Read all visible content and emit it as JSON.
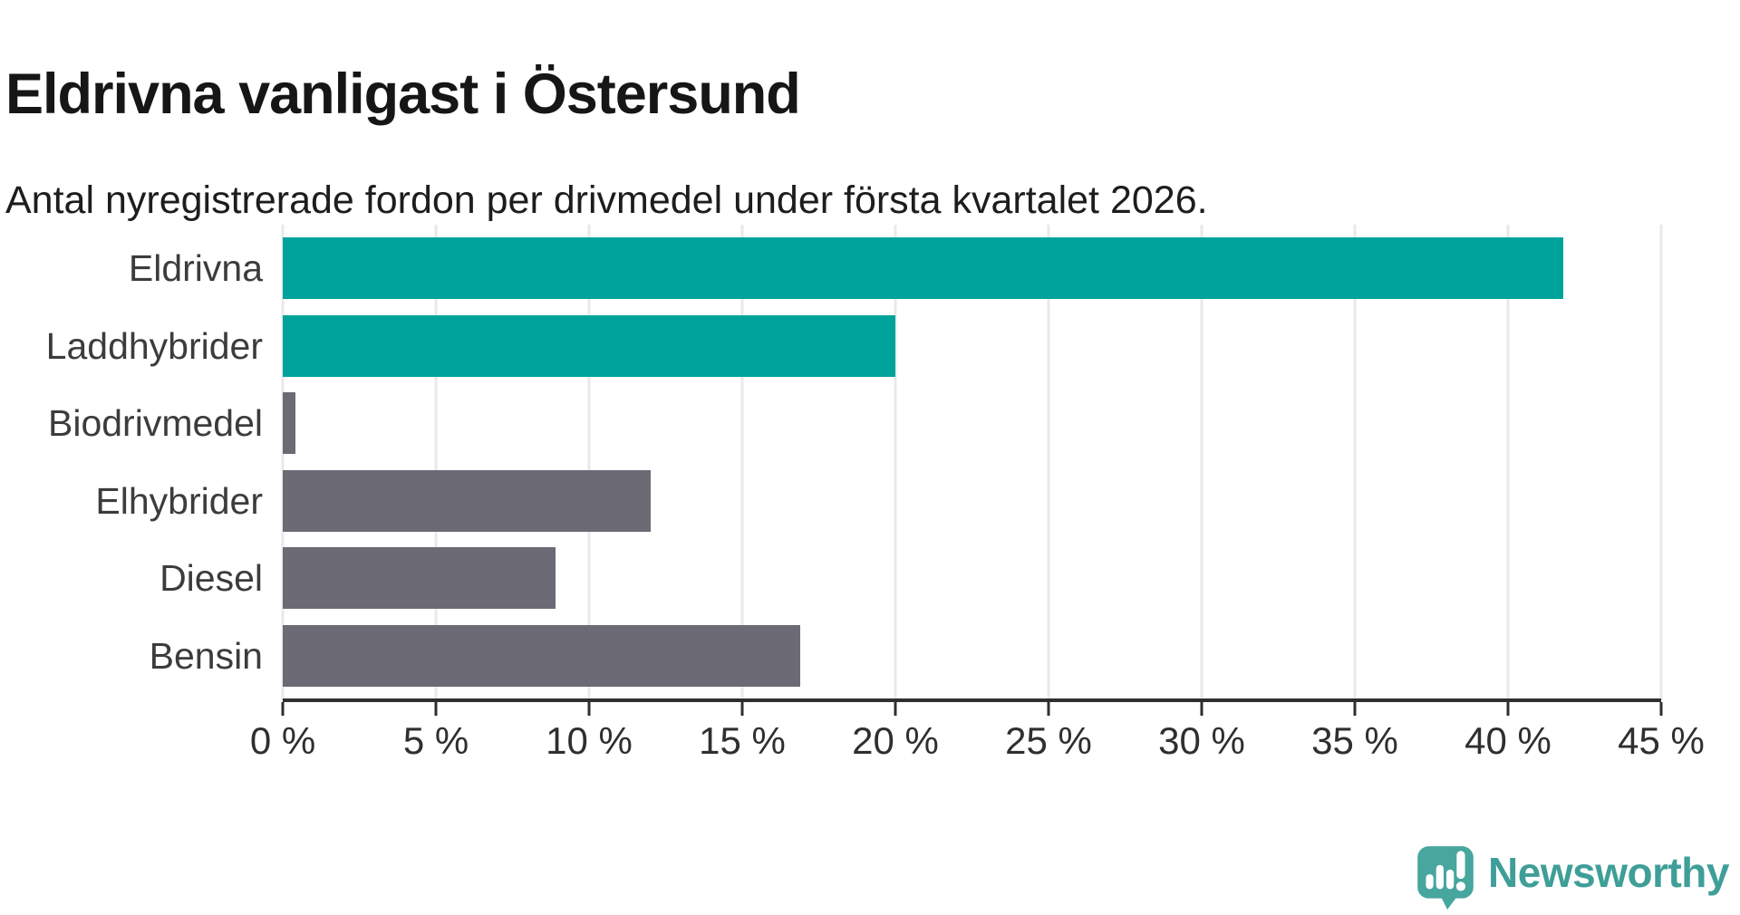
{
  "header": {
    "title": "Eldrivna vanligast i Östersund",
    "subtitle": "Antal nyregistrerade fordon per drivmedel under första kvartalet 2026."
  },
  "chart_data": {
    "type": "bar",
    "orientation": "horizontal",
    "title": "Eldrivna vanligast i Östersund",
    "subtitle": "Antal nyregistrerade fordon per drivmedel under första kvartalet 2026.",
    "categories": [
      "Eldrivna",
      "Laddhybrider",
      "Biodrivmedel",
      "Elhybrider",
      "Diesel",
      "Bensin"
    ],
    "values": [
      41.8,
      20.0,
      0.4,
      12.0,
      8.9,
      16.9
    ],
    "unit": "%",
    "bar_colors": [
      "#00a39b",
      "#00a39b",
      "#6c6a75",
      "#6c6a75",
      "#6c6a75",
      "#6c6a75"
    ],
    "highlight_color": "#00a39b",
    "default_color": "#6c6a75",
    "xlim": [
      0,
      45
    ],
    "xticks": [
      0,
      5,
      10,
      15,
      20,
      25,
      30,
      35,
      40,
      45
    ],
    "xtick_labels": [
      "0 %",
      "5 %",
      "10 %",
      "15 %",
      "20 %",
      "25 %",
      "30 %",
      "35 %",
      "40 %",
      "45 %"
    ],
    "xlabel": "",
    "ylabel": "",
    "grid": "vertical-only",
    "gridline_color": "#e9e9e9",
    "axis_color": "#2f2f2f",
    "legend": "none"
  },
  "branding": {
    "logo_text": "Newsworthy",
    "logo_text_color": "#3f9f98",
    "logo_icon": "newsworthy-bubble-barchart-icon",
    "logo_icon_color": "#47a69e"
  }
}
